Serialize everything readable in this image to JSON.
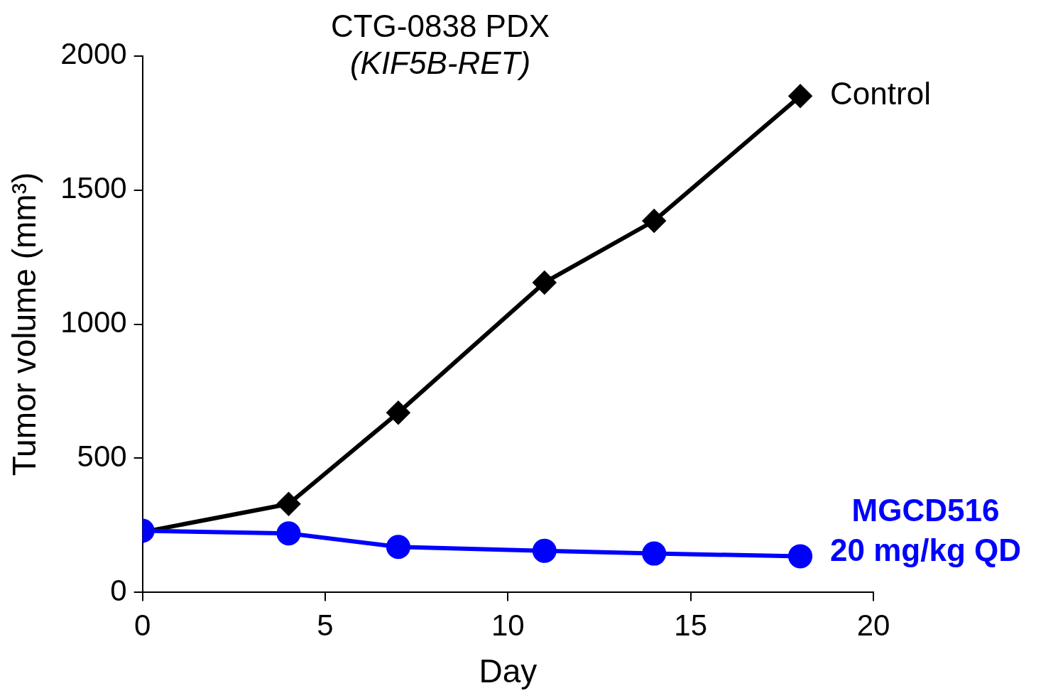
{
  "chart_data": {
    "type": "line",
    "title": "CTG-0838 PDX",
    "subtitle": "(KIF5B-RET)",
    "xlabel": "Day",
    "ylabel": "Tumor volume (mm³)",
    "x": [
      0,
      4,
      7,
      11,
      14,
      18
    ],
    "series": [
      {
        "name": "Control",
        "color": "#000000",
        "marker": "diamond",
        "values": [
          225,
          330,
          670,
          1155,
          1385,
          1850
        ]
      },
      {
        "name": "MGCD516\n20 mg/kg QD",
        "color": "#0000ff",
        "marker": "circle",
        "values": [
          230,
          220,
          170,
          155,
          145,
          135
        ]
      }
    ],
    "xlim": [
      0,
      20
    ],
    "xticks": [
      0,
      5,
      10,
      15,
      20
    ],
    "ylim": [
      0,
      2000
    ],
    "yticks": [
      0,
      500,
      1000,
      1500,
      2000
    ],
    "grid": false,
    "legend": false
  }
}
